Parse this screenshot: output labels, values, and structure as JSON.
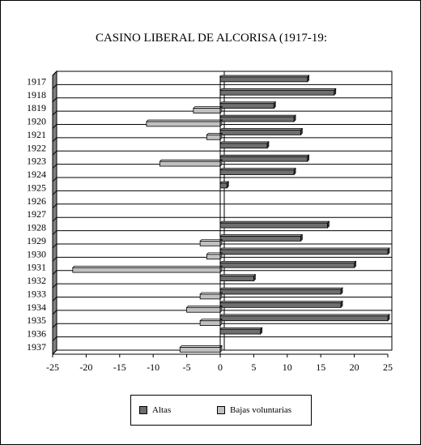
{
  "chart_data": {
    "type": "bar",
    "orientation": "horizontal",
    "title": "CASINO LIBERAL DE ALCORISA (1917-19:",
    "categories": [
      "1917",
      "1918",
      "1819",
      "1920",
      "1921",
      "1922",
      "1923",
      "1924",
      "1925",
      "1926",
      "1927",
      "1928",
      "1929",
      "1930",
      "1931",
      "1932",
      "1933",
      "1934",
      "1935",
      "1936",
      "1937"
    ],
    "series": [
      {
        "name": "Altas",
        "color": "#6e6e6e",
        "values": [
          13,
          17,
          8,
          11,
          12,
          7,
          13,
          11,
          1,
          0,
          0,
          16,
          12,
          25,
          20,
          5,
          18,
          18,
          25,
          6,
          0
        ]
      },
      {
        "name": "Bajas voluntarias",
        "color": "#c0c0c0",
        "values": [
          0,
          0,
          -4,
          -11,
          -2,
          0,
          -9,
          0,
          0,
          0,
          0,
          0,
          -3,
          -2,
          -22,
          0,
          -3,
          -5,
          -3,
          0,
          -6
        ]
      }
    ],
    "xlim": [
      -25,
      25
    ],
    "xticks": [
      "-25",
      "-20",
      "-15",
      "-10",
      "-5",
      "0",
      "5",
      "10",
      "15",
      "20",
      "25"
    ],
    "grid": "horizontal",
    "legend_position": "bottom"
  }
}
